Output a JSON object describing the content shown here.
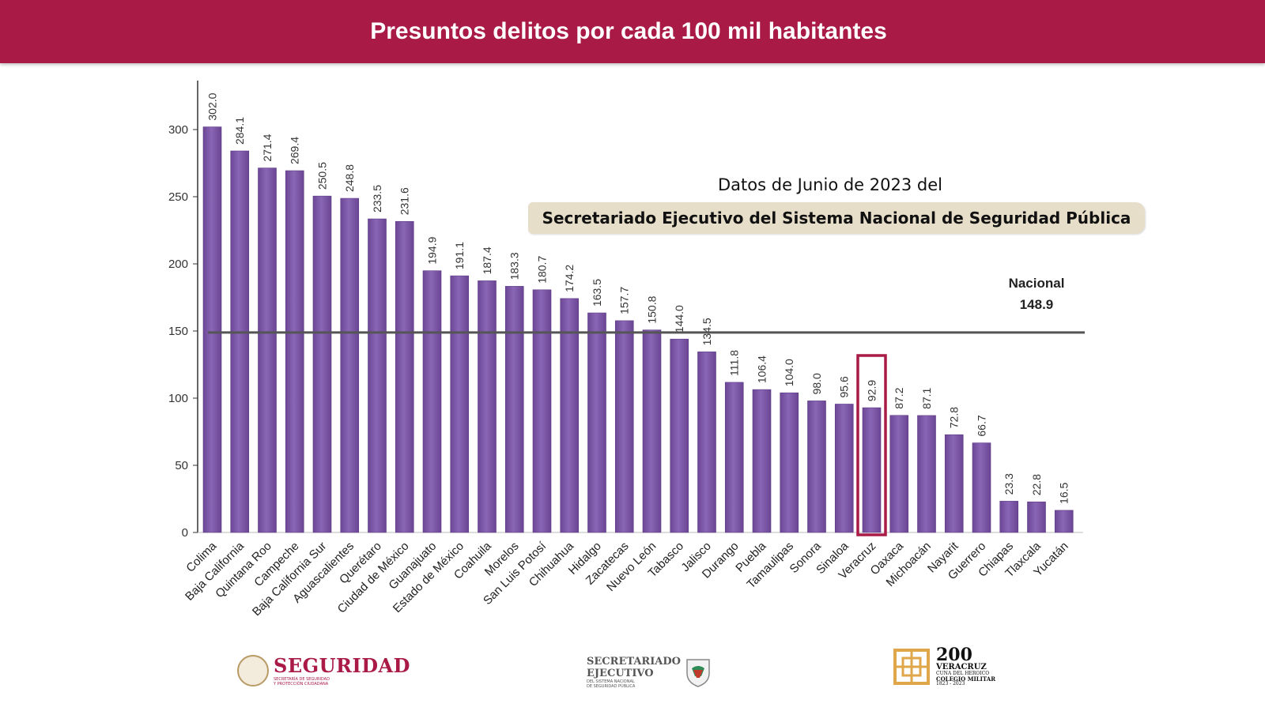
{
  "header": {
    "title": "Presuntos delitos por cada 100 mil habitantes"
  },
  "annotations": {
    "datos": "Datos  de Junio de 2023 del",
    "source": "Secretariado Ejecutivo del Sistema Nacional de Seguridad Pública"
  },
  "colors": {
    "header": "#a91a47",
    "bar": "#7b57a6",
    "highlight": "#a91a47",
    "reference_line": "#555555"
  },
  "logos": {
    "seguridad": {
      "word": "SEGURIDAD",
      "sub1": "SECRETARÍA DE SEGURIDAD",
      "sub2": "Y PROTECCIÓN CIUDADANA"
    },
    "sesnsp": {
      "word1": "SECRETARIADO",
      "word2": "EJECUTIVO",
      "sub1": "DEL SISTEMA NACIONAL",
      "sub2": "DE SEGURIDAD PÚBLICA"
    },
    "bicentenario": {
      "num": "200",
      "city": "VERACRUZ",
      "sub": "CUNA DEL HEROICO",
      "college": "COLEGIO MILITAR",
      "years": "1823 - 2023"
    }
  },
  "chart_data": {
    "type": "bar",
    "title": "Presuntos delitos por cada 100 mil habitantes",
    "xlabel": "",
    "ylabel": "",
    "ylim": [
      0,
      300
    ],
    "yticks": [
      0,
      50,
      100,
      150,
      200,
      250,
      300
    ],
    "categories": [
      "Colima",
      "Baja California",
      "Quintana Roo",
      "Campeche",
      "Baja California Sur",
      "Aguascalientes",
      "Querétaro",
      "Ciudad de México",
      "Guanajuato",
      "Estado de México",
      "Coahuila",
      "Morelos",
      "San Luis Potosí",
      "Chihuahua",
      "Hidalgo",
      "Zacatecas",
      "Nuevo León",
      "Tabasco",
      "Jalisco",
      "Durango",
      "Puebla",
      "Tamaulipas",
      "Sonora",
      "Sinaloa",
      "Veracruz",
      "Oaxaca",
      "Michoacán",
      "Nayarit",
      "Guerrero",
      "Chiapas",
      "Tlaxcala",
      "Yucatán"
    ],
    "values": [
      302.0,
      284.1,
      271.4,
      269.4,
      250.5,
      248.8,
      233.5,
      231.6,
      194.9,
      191.1,
      187.4,
      183.3,
      180.7,
      174.2,
      163.5,
      157.7,
      150.8,
      144.0,
      134.5,
      111.8,
      106.4,
      104.0,
      98.0,
      95.6,
      92.9,
      87.2,
      87.1,
      72.8,
      66.7,
      23.3,
      22.8,
      16.5
    ],
    "value_labels": [
      "302.0",
      "284.1",
      "271.4",
      "269.4",
      "250.5",
      "248.8",
      "233.5",
      "231.6",
      "194.9",
      "191.1",
      "187.4",
      "183.3",
      "180.7",
      "174.2",
      "163.5",
      "157.7",
      "150.8",
      "144.0",
      "134.5",
      "111.8",
      "106.4",
      "104.0",
      "98.0",
      "95.6",
      "92.9",
      "87.2",
      "87.1",
      "72.8",
      "66.7",
      "23.3",
      "22.8",
      "16.5"
    ],
    "highlighted": "Veracruz",
    "reference_line": {
      "label": "Nacional",
      "value": 148.9,
      "value_label": "148.9"
    },
    "grid": false,
    "legend": "none"
  }
}
